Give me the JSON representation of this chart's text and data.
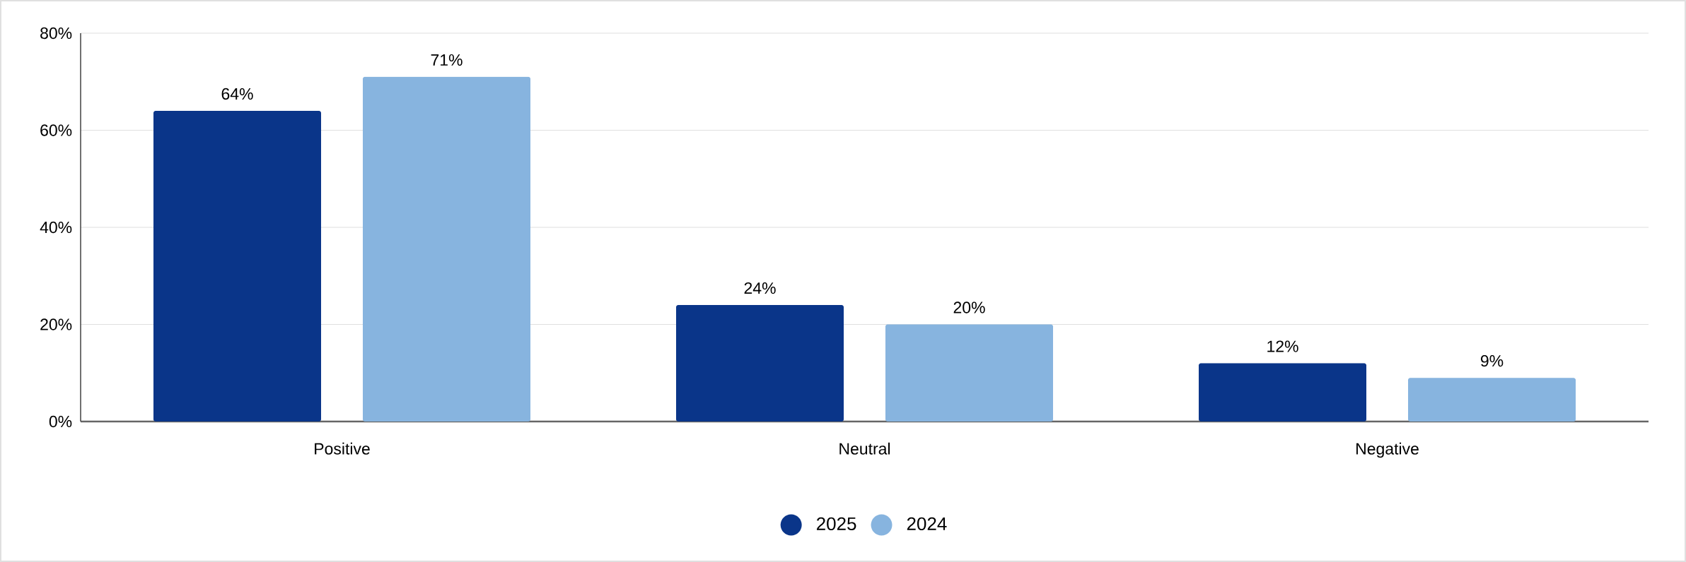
{
  "chart_data": {
    "type": "bar",
    "categories": [
      "Positive",
      "Neutral",
      "Negative"
    ],
    "series": [
      {
        "name": "2025",
        "color": "#0a3589",
        "values": [
          64,
          24,
          12
        ],
        "value_labels": [
          "64%",
          "24%",
          "12%"
        ]
      },
      {
        "name": "2024",
        "color": "#87b4df",
        "values": [
          71,
          20,
          9
        ],
        "value_labels": [
          "71%",
          "20%",
          "9%"
        ]
      }
    ],
    "ylim": [
      0,
      80
    ],
    "yticks": [
      {
        "value": 0,
        "label": "0%"
      },
      {
        "value": 20,
        "label": "20%"
      },
      {
        "value": 40,
        "label": "40%"
      },
      {
        "value": 60,
        "label": "60%"
      },
      {
        "value": 80,
        "label": "80%"
      }
    ],
    "grid": "y",
    "legend": "bottom"
  }
}
